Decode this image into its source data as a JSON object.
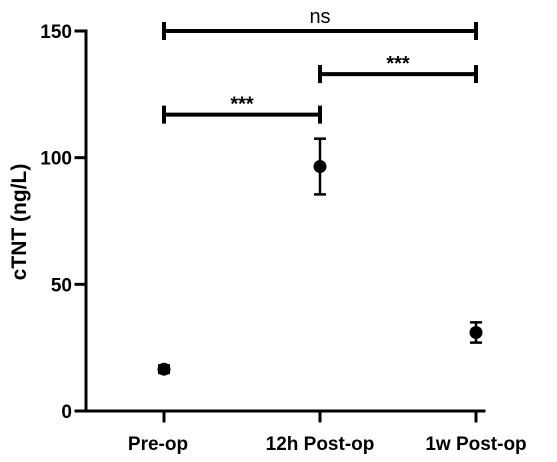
{
  "chart_data": {
    "type": "scatter",
    "ylabel": "cTNT (ng/L)",
    "xlabel": "",
    "title": "",
    "ylim": [
      0,
      150
    ],
    "yticks": [
      0,
      50,
      100,
      150
    ],
    "categories": [
      "Pre-op",
      "12h Post-op",
      "1w Post-op"
    ],
    "series": [
      {
        "mean": [
          16.5,
          96.5,
          31
        ],
        "error_low": [
          15,
          85.5,
          27
        ],
        "error_high": [
          18,
          107.5,
          35
        ]
      }
    ],
    "significance": [
      {
        "from": 0,
        "to": 2,
        "label": "ns",
        "y": 150
      },
      {
        "from": 1,
        "to": 2,
        "label": "***",
        "y": 133
      },
      {
        "from": 0,
        "to": 1,
        "label": "***",
        "y": 117
      }
    ],
    "grid": false,
    "legend": "none"
  }
}
